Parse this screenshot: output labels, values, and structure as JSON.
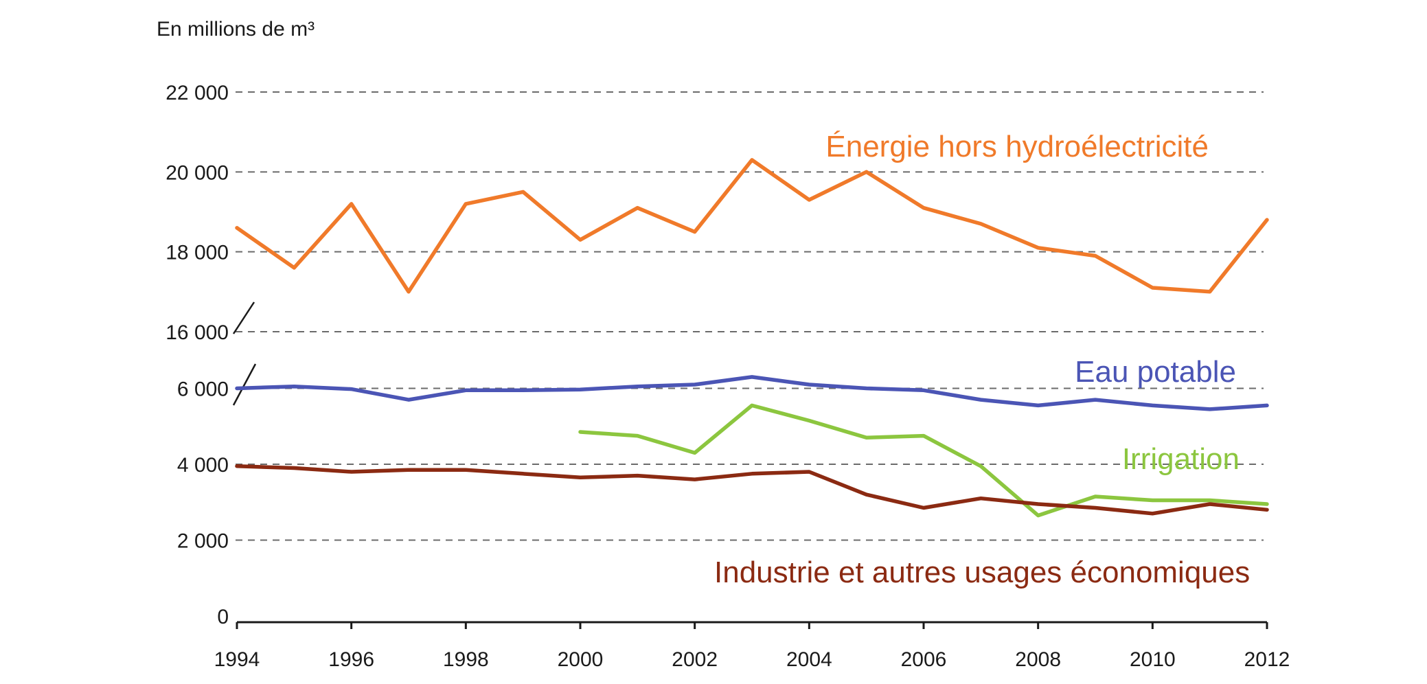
{
  "chart_data": {
    "type": "line",
    "unit_label": "En millions de m³",
    "x": [
      1994,
      1995,
      1996,
      1997,
      1998,
      1999,
      2000,
      2001,
      2002,
      2003,
      2004,
      2005,
      2006,
      2007,
      2008,
      2009,
      2010,
      2011,
      2012
    ],
    "x_tick_labels": [
      "1994",
      "1996",
      "1998",
      "2000",
      "2002",
      "2004",
      "2006",
      "2008",
      "2010",
      "2012"
    ],
    "y_tick_labels": [
      "0",
      "2 000",
      "4 000",
      "6 000",
      "16 000",
      "18 000",
      "20 000",
      "22 000"
    ],
    "y_axis_break": [
      6000,
      16000
    ],
    "grid": "horizontal dashed",
    "series": [
      {
        "name": "Énergie hors hydroélectricité",
        "color": "#f07a2a",
        "values": [
          18600,
          17600,
          19200,
          17000,
          19200,
          19500,
          18300,
          19100,
          18500,
          20300,
          19300,
          20000,
          19100,
          18700,
          18100,
          17900,
          17100,
          17000,
          18800
        ]
      },
      {
        "name": "Eau potable",
        "color": "#4b55b5",
        "values": [
          6000,
          6050,
          5980,
          5700,
          5950,
          5950,
          5970,
          6050,
          6100,
          6300,
          6100,
          6000,
          5950,
          5700,
          5550,
          5700,
          5550,
          5450,
          5550
        ]
      },
      {
        "name": "Irrigation",
        "color": "#8cc63f",
        "values": [
          null,
          null,
          null,
          null,
          null,
          null,
          4850,
          4750,
          4300,
          5550,
          5150,
          4700,
          4750,
          3950,
          2650,
          3150,
          3050,
          3050,
          2950
        ]
      },
      {
        "name": "Industrie et autres usages économiques",
        "color": "#8b2a12",
        "values": [
          3950,
          3900,
          3800,
          3850,
          3850,
          3750,
          3650,
          3700,
          3600,
          3750,
          3800,
          3200,
          2850,
          3100,
          2950,
          2850,
          2700,
          2950,
          2800
        ]
      }
    ]
  }
}
